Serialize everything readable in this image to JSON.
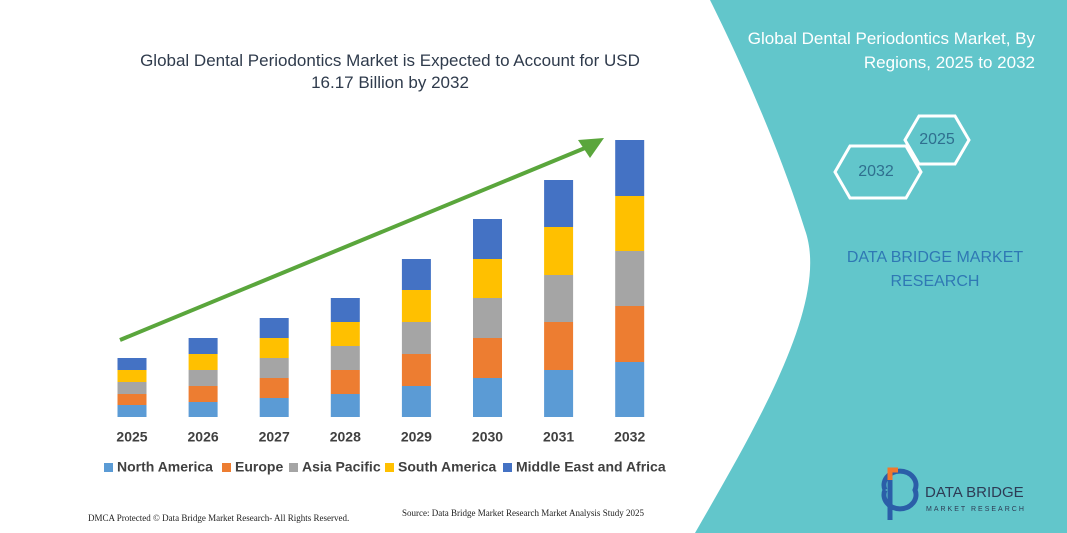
{
  "chart_data": {
    "type": "bar",
    "stacked": true,
    "title": "Global Dental Periodontics Market is Expected to Account for USD 16.17 Billion by 2032",
    "categories": [
      "2025",
      "2026",
      "2027",
      "2028",
      "2029",
      "2030",
      "2031",
      "2032"
    ],
    "series": [
      {
        "name": "North America",
        "color": "#5b9bd5",
        "values": [
          12,
          15,
          19,
          23,
          31,
          39,
          47,
          55
        ]
      },
      {
        "name": "Europe",
        "color": "#ed7d31",
        "values": [
          11,
          16,
          20,
          24,
          32,
          40,
          48,
          56
        ]
      },
      {
        "name": "Asia Pacific",
        "color": "#a5a5a5",
        "values": [
          12,
          16,
          20,
          24,
          32,
          40,
          47,
          55
        ]
      },
      {
        "name": "South America",
        "color": "#ffc000",
        "values": [
          12,
          16,
          20,
          24,
          32,
          39,
          48,
          55
        ]
      },
      {
        "name": "Middle East and Africa",
        "color": "#4472c4",
        "values": [
          12,
          16,
          20,
          24,
          31,
          40,
          47,
          56
        ]
      }
    ]
  },
  "panel": {
    "title": "Global Dental Periodontics Market, By Regions, 2025 to 2032",
    "hex_small": "2025",
    "hex_large": "2032",
    "brand": "DATA BRIDGE MARKET RESEARCH"
  },
  "logo": {
    "name": "DATA BRIDGE",
    "tagline": "MARKET RESEARCH"
  },
  "footer": {
    "copyright": "DMCA Protected © Data Bridge Market Research- All Rights Reserved.",
    "source": "Source: Data Bridge Market Research  Market Analysis Study 2025"
  }
}
